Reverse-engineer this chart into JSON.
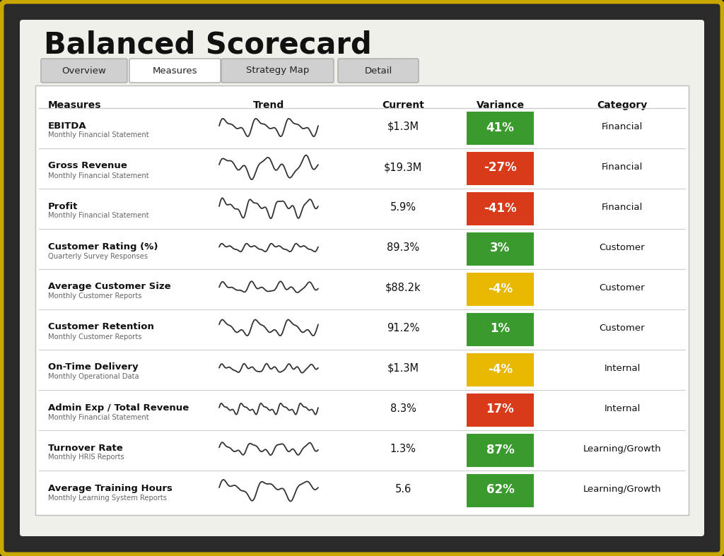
{
  "title": "Balanced Scorecard",
  "tabs": [
    "Overview",
    "Measures",
    "Strategy Map",
    "Detail"
  ],
  "active_tab": 1,
  "col_headers": [
    "Measures",
    "Trend",
    "Current",
    "Variance",
    "Category"
  ],
  "rows": [
    {
      "measure": "EBITDA",
      "subtitle": "Monthly Financial Statement",
      "current": "$1.3M",
      "variance": "41%",
      "variance_color": "#3a9a2e",
      "category": "Financial"
    },
    {
      "measure": "Gross Revenue",
      "subtitle": "Monthly Financial Statement",
      "current": "$19.3M",
      "variance": "-27%",
      "variance_color": "#d93a1a",
      "category": "Financial"
    },
    {
      "measure": "Profit",
      "subtitle": "Monthly Financial Statement",
      "current": "5.9%",
      "variance": "-41%",
      "variance_color": "#d93a1a",
      "category": "Financial"
    },
    {
      "measure": "Customer Rating (%)",
      "subtitle": "Quarterly Survey Responses",
      "current": "89.3%",
      "variance": "3%",
      "variance_color": "#3a9a2e",
      "category": "Customer"
    },
    {
      "measure": "Average Customer Size",
      "subtitle": "Monthly Customer Reports",
      "current": "$88.2k",
      "variance": "-4%",
      "variance_color": "#e8b800",
      "category": "Customer"
    },
    {
      "measure": "Customer Retention",
      "subtitle": "Monthly Customer Reports",
      "current": "91.2%",
      "variance": "1%",
      "variance_color": "#3a9a2e",
      "category": "Customer"
    },
    {
      "measure": "On-Time Delivery",
      "subtitle": "Monthly Operational Data",
      "current": "$1.3M",
      "variance": "-4%",
      "variance_color": "#e8b800",
      "category": "Internal"
    },
    {
      "measure": "Admin Exp / Total Revenue",
      "subtitle": "Monthly Financial Statement",
      "current": "8.3%",
      "variance": "17%",
      "variance_color": "#d93a1a",
      "category": "Internal"
    },
    {
      "measure": "Turnover Rate",
      "subtitle": "Monthly HRIS Reports",
      "current": "1.3%",
      "variance": "87%",
      "variance_color": "#3a9a2e",
      "category": "Learning/Growth"
    },
    {
      "measure": "Average Training Hours",
      "subtitle": "Monthly Learning System Reports",
      "current": "5.6",
      "variance": "62%",
      "variance_color": "#3a9a2e",
      "category": "Learning/Growth"
    }
  ],
  "bg_outer": "#222222",
  "bg_screen": "#f0f0eb",
  "bg_inner": "#ffffff",
  "border_color": "#c8a800",
  "tab_bg": "#d0d0d0",
  "tab_active_bg": "#ffffff",
  "grid_line_color": "#cccccc",
  "variance_text_color": "#ffffff",
  "trend_color": "#333333"
}
